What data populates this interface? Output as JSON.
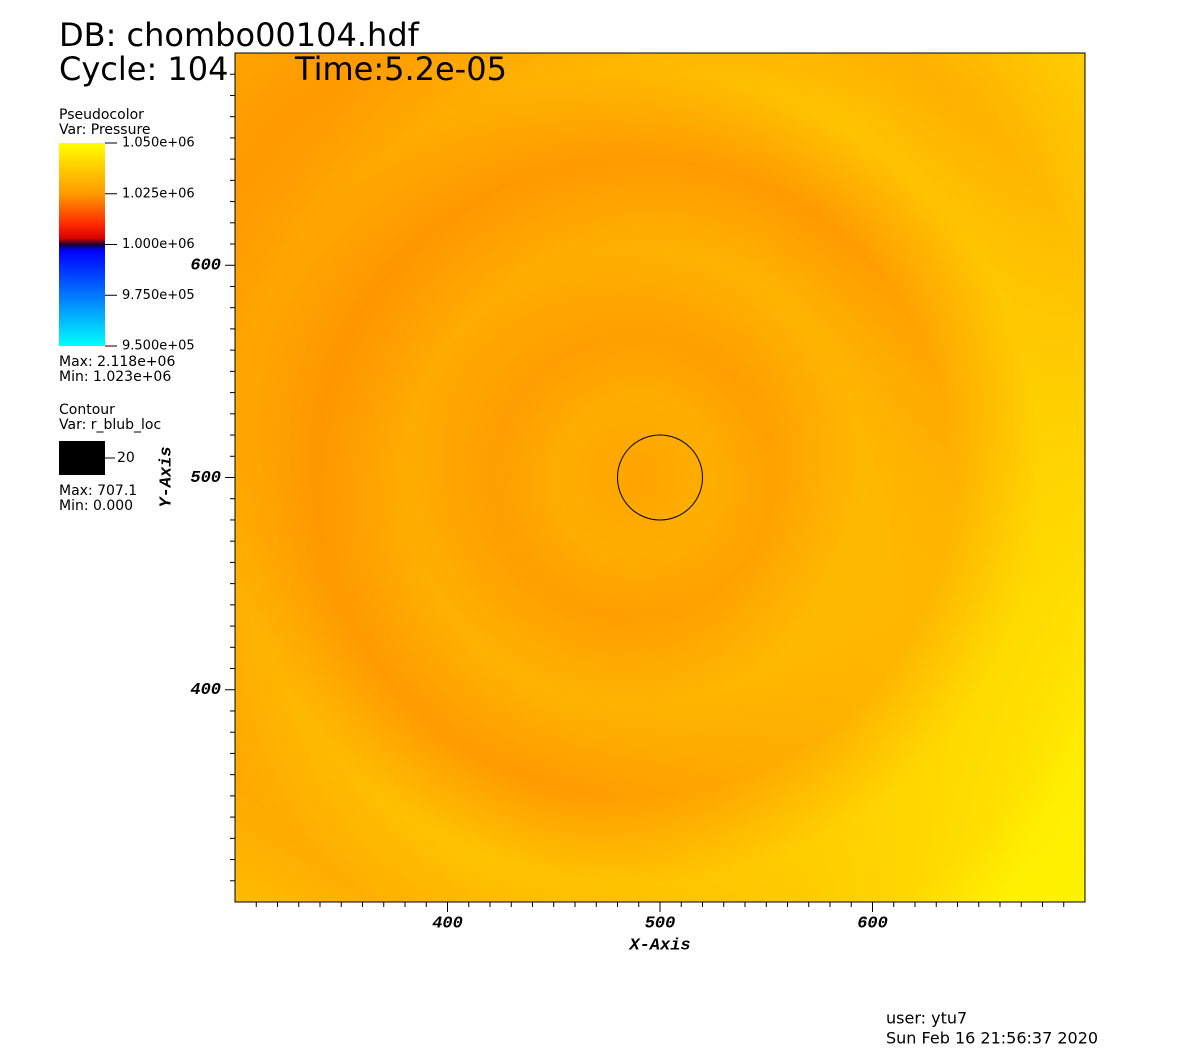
{
  "chart_data": {
    "type": "pseudocolor",
    "title": "DB: chombo00104.hdf",
    "cycle": "Cycle: 104",
    "time": "Time:5.2e-05",
    "xlabel": "X-Axis",
    "ylabel": "Y-Axis",
    "xlim": [
      300,
      700
    ],
    "ylim": [
      300,
      700
    ],
    "xticks": [
      400,
      500,
      600
    ],
    "yticks": [
      400,
      500,
      600
    ],
    "xminorticks": [
      310,
      320,
      330,
      340,
      350,
      360,
      370,
      380,
      390,
      410,
      420,
      430,
      440,
      450,
      460,
      470,
      480,
      490,
      510,
      520,
      530,
      540,
      550,
      560,
      570,
      580,
      590,
      610,
      620,
      630,
      640,
      650,
      660,
      670,
      680,
      690
    ],
    "yminorticks": [
      310,
      320,
      330,
      340,
      350,
      360,
      370,
      380,
      390,
      410,
      420,
      430,
      440,
      450,
      460,
      470,
      480,
      490,
      510,
      520,
      530,
      540,
      550,
      560,
      570,
      580,
      590,
      610,
      620,
      630,
      640,
      650,
      660,
      670,
      680,
      690
    ],
    "pseudocolor_legend": {
      "title": "Pseudocolor",
      "var": "Var: Pressure",
      "ticks": [
        {
          "value": 1050000,
          "label": "1.050e+06"
        },
        {
          "value": 1025000,
          "label": "1.025e+06"
        },
        {
          "value": 1000000,
          "label": "1.000e+06"
        },
        {
          "value": 975000,
          "label": "9.750e+05"
        },
        {
          "value": 950000,
          "label": "9.500e+05"
        }
      ],
      "max": "Max: 2.118e+06",
      "min": "Min:  1.023e+06"
    },
    "contour": {
      "title": "Contour",
      "var": "Var: r_blub_loc",
      "levels": [
        20
      ],
      "color": "#000000",
      "max": "Max: 707.1",
      "min": "Min: 0.000"
    },
    "user": "user: ytu7",
    "date": "Sun Feb 16 21:56:37 2020"
  }
}
